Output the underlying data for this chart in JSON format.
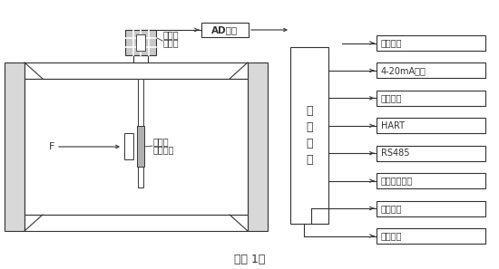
{
  "title": "（图 1）",
  "bg_color": "#ffffff",
  "line_color": "#333333",
  "labels": {
    "ad": "AD转换",
    "sensor_line1": "双电容",
    "sensor_line2": "传感器",
    "resistor_line1": "阻流件",
    "resistor_line2": "（靶片）",
    "micro_line1": "微",
    "micro_line2": "处",
    "micro_line3": "理",
    "micro_line4": "器",
    "F": "F",
    "outputs": [
      "液晶显示",
      "4-20mA输出",
      "脉冲输出",
      "HART",
      "RS485",
      "红外置零开关",
      "压力采集",
      "温度采集"
    ]
  },
  "layout": {
    "fig_w": 5.5,
    "fig_h": 2.97,
    "dpi": 100
  }
}
